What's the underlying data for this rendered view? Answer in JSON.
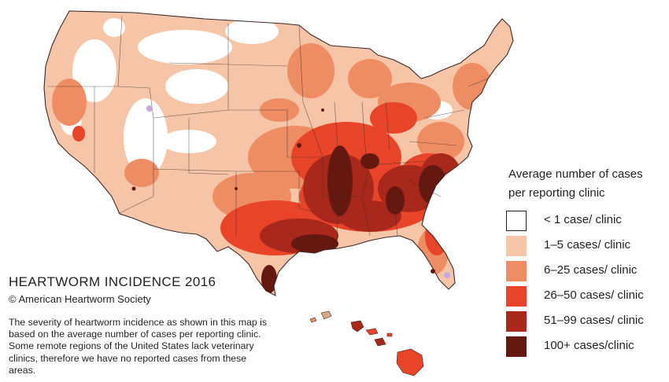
{
  "map": {
    "title": "HEARTWORM INCIDENCE 2016",
    "copyright": "© American Heartworm Society",
    "note": "The severity of heartworm incidence as shown in this map is based on the average number of cases per reporting clinic.  Some remote regions of the United States lack veterinary clinics, therefore we have no reported cases from these areas."
  },
  "legend": {
    "title_line1": "Average number of cases",
    "title_line2": "per reporting clinic",
    "items": [
      {
        "label": "< 1 case/ clinic",
        "color": "#ffffff"
      },
      {
        "label": "1–5 cases/ clinic",
        "color": "#f6c5a8"
      },
      {
        "label": "6–25  cases/ clinic",
        "color": "#ee8c63"
      },
      {
        "label": "26–50  cases/ clinic",
        "color": "#e8442a"
      },
      {
        "label": "51–99 cases/ clinic",
        "color": "#a8281c"
      },
      {
        "label": "100+ cases/clinic",
        "color": "#651810"
      }
    ]
  },
  "regions_shown": [
    "contiguous-united-states",
    "alaska-not-shown",
    "hawaii"
  ]
}
